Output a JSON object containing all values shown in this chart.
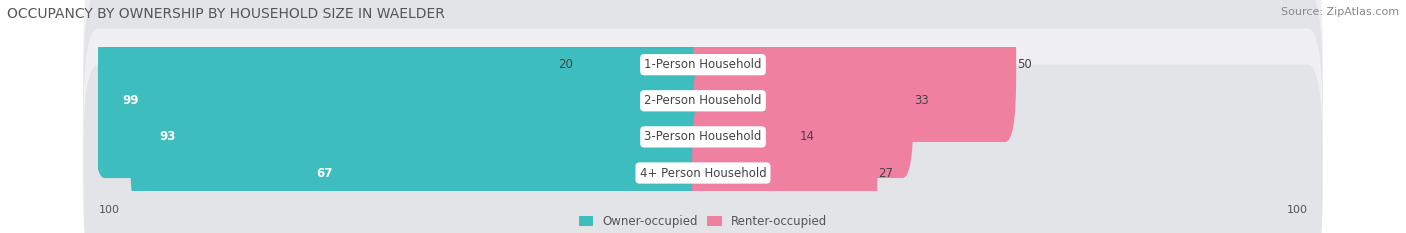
{
  "title": "OCCUPANCY BY OWNERSHIP BY HOUSEHOLD SIZE IN WAELDER",
  "source": "Source: ZipAtlas.com",
  "categories": [
    "1-Person Household",
    "2-Person Household",
    "3-Person Household",
    "4+ Person Household"
  ],
  "owner_values": [
    20,
    99,
    93,
    67
  ],
  "renter_values": [
    50,
    33,
    14,
    27
  ],
  "max_scale": 100,
  "owner_color": "#3DBDBD",
  "renter_color": "#F080A0",
  "row_bg_colors": [
    "#F0F0F2",
    "#E2E4E8",
    "#F0F0F2",
    "#E2E4E8"
  ],
  "title_fontsize": 10,
  "source_fontsize": 8,
  "label_fontsize": 8.5,
  "value_fontsize": 8.5,
  "axis_label_fontsize": 8,
  "legend_fontsize": 8.5,
  "legend_owner": "Owner-occupied",
  "legend_renter": "Renter-occupied"
}
